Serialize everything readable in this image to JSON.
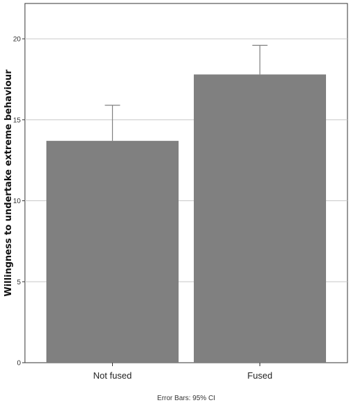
{
  "chart_data": {
    "type": "bar",
    "categories": [
      "Not fused",
      "Fused"
    ],
    "values": [
      13.7,
      17.8
    ],
    "error_bars": {
      "label": "Error Bars: 95% CI",
      "upper": [
        15.9,
        19.6
      ],
      "lower": [
        11.5,
        16.0
      ]
    },
    "title": "",
    "xlabel": "",
    "ylabel": "Willingness to undertake extreme behaviour",
    "ylim": [
      0,
      22
    ],
    "yticks": [
      0,
      5,
      10,
      15,
      20
    ],
    "grid": true,
    "colors": {
      "bar": "#808080",
      "grid": "#c8c8c8",
      "axis": "#333333",
      "error": "#808080"
    }
  }
}
